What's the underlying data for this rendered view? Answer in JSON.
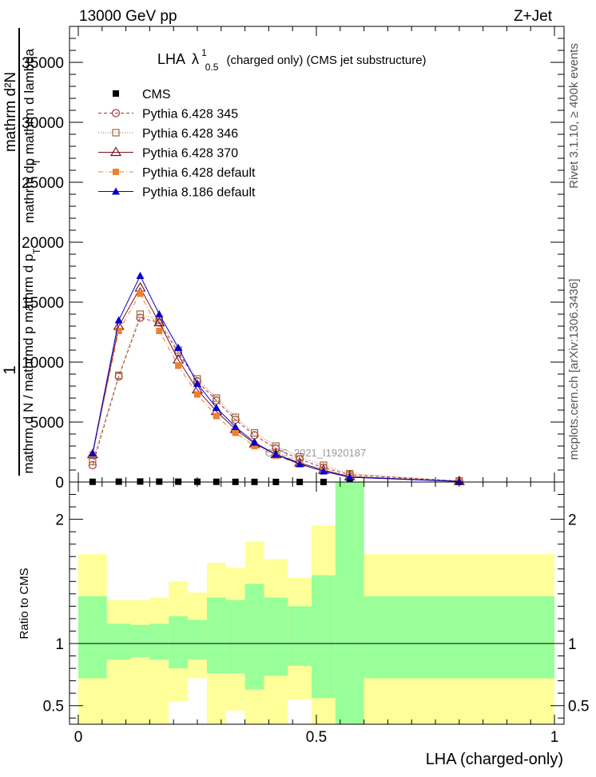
{
  "header": {
    "energy_label": "13000 GeV pp",
    "process_label": "Z+Jet",
    "title_lha": "LHA",
    "title_lambda": "λ",
    "title_sub": "0.5",
    "title_sup": "1",
    "title_rest": "(charged only) (CMS jet substructure)"
  },
  "side_labels": {
    "rivet": "Rivet 3.1.10, ≥ 400k events",
    "mcplots": "mcplots.cern.ch [arXiv:1306.3436]"
  },
  "watermark": "CMS_2021_I1920187",
  "ylabel_main": {
    "num": "mathrm d²N",
    "num_sub": "mathrm dp  mathrm d lambda",
    "num_sub_t": "T",
    "den": "mathrm d N / mathrmd p  mathrm d p",
    "den_sub": "T",
    "one": "1"
  },
  "colors": {
    "cms": "#000000",
    "p345": "#a0393b",
    "p346": "#a0693b",
    "p370": "#7a0f1c",
    "p6def": "#f08030",
    "p8def": "#0000d0",
    "band_inner": "#99ff99",
    "band_outer": "#ffff99"
  },
  "chart_data": [
    {
      "type": "line",
      "title": "LHA λ^1_0.5 (charged only) (CMS jet substructure)",
      "xlabel": "LHA (charged-only)",
      "ylabel": "1 / (mathrm d N / mathrm d p_T) · mathrm d²N / (mathrm d p_T mathrm d lambda)",
      "xlim": [
        0,
        1
      ],
      "ylim": [
        0,
        38000
      ],
      "yticks": [
        0,
        5000,
        10000,
        15000,
        20000,
        25000,
        30000,
        35000
      ],
      "ytick_labels": [
        "0",
        "5000",
        "10000",
        "15000",
        "20000",
        "25000",
        "30000",
        "35000"
      ],
      "x": [
        0.03,
        0.085,
        0.13,
        0.17,
        0.21,
        0.25,
        0.29,
        0.33,
        0.37,
        0.415,
        0.465,
        0.515,
        0.57,
        0.8
      ],
      "series": [
        {
          "name": "CMS",
          "marker": "filled-square",
          "values": [
            18,
            30,
            42,
            35,
            28,
            22,
            18,
            14,
            11,
            8,
            6,
            4,
            3,
            1
          ]
        },
        {
          "name": "Pythia 6.428 345",
          "marker": "open-circle",
          "style": "dashed",
          "values": [
            1400,
            8800,
            13700,
            13300,
            10800,
            8400,
            6800,
            5200,
            3900,
            2800,
            1900,
            1200,
            600,
            80
          ]
        },
        {
          "name": "Pythia 6.428 346",
          "marker": "open-square",
          "style": "dotted",
          "values": [
            1700,
            8900,
            14000,
            13500,
            11000,
            8600,
            7000,
            5400,
            4100,
            3000,
            2100,
            1400,
            700,
            90
          ]
        },
        {
          "name": "Pythia 6.428 370",
          "marker": "open-triangle",
          "style": "solid",
          "values": [
            2300,
            13000,
            16200,
            13300,
            10200,
            7700,
            5900,
            4400,
            3200,
            2300,
            1600,
            1000,
            450,
            60
          ]
        },
        {
          "name": "Pythia 6.428 default",
          "marker": "filled-square",
          "style": "dashdot",
          "values": [
            2300,
            12600,
            15700,
            12600,
            9700,
            7300,
            5500,
            4100,
            3000,
            2200,
            1500,
            900,
            400,
            50
          ]
        },
        {
          "name": "Pythia 8.186 default",
          "marker": "filled-triangle",
          "style": "solid",
          "values": [
            2400,
            13500,
            17200,
            14000,
            11200,
            8200,
            6200,
            4600,
            3300,
            2300,
            1500,
            900,
            400,
            50
          ]
        }
      ]
    },
    {
      "type": "area",
      "ylabel": "Ratio to CMS",
      "xlabel": "LHA (charged-only)",
      "xlim": [
        0,
        1
      ],
      "ylim": [
        0.35,
        2.3
      ],
      "xticks": [
        0,
        0.5,
        1
      ],
      "xtick_labels": [
        "0",
        "0.5",
        "1"
      ],
      "yticks": [
        0.5,
        1,
        2
      ],
      "ytick_labels": [
        "0.5",
        "1",
        "2"
      ],
      "reference_line": 1,
      "bins": [
        {
          "lo": 0.0,
          "hi": 0.06,
          "inner": [
            0.72,
            1.38
          ],
          "outer": [
            0.35,
            1.72
          ]
        },
        {
          "lo": 0.06,
          "hi": 0.11,
          "inner": [
            0.87,
            1.16
          ],
          "outer": [
            0.35,
            1.35
          ]
        },
        {
          "lo": 0.11,
          "hi": 0.15,
          "inner": [
            0.89,
            1.15
          ],
          "outer": [
            0.35,
            1.35
          ]
        },
        {
          "lo": 0.15,
          "hi": 0.19,
          "inner": [
            0.87,
            1.16
          ],
          "outer": [
            0.35,
            1.37
          ]
        },
        {
          "lo": 0.19,
          "hi": 0.23,
          "inner": [
            0.8,
            1.22
          ],
          "outer": [
            0.53,
            1.5
          ]
        },
        {
          "lo": 0.23,
          "hi": 0.27,
          "inner": [
            0.87,
            1.19
          ],
          "outer": [
            0.72,
            1.41
          ]
        },
        {
          "lo": 0.27,
          "hi": 0.31,
          "inner": [
            0.76,
            1.37
          ],
          "outer": [
            0.35,
            1.65
          ]
        },
        {
          "lo": 0.31,
          "hi": 0.35,
          "inner": [
            0.76,
            1.35
          ],
          "outer": [
            0.46,
            1.61
          ]
        },
        {
          "lo": 0.35,
          "hi": 0.39,
          "inner": [
            0.63,
            1.48
          ],
          "outer": [
            0.35,
            1.82
          ]
        },
        {
          "lo": 0.39,
          "hi": 0.44,
          "inner": [
            0.74,
            1.37
          ],
          "outer": [
            0.35,
            1.68
          ]
        },
        {
          "lo": 0.44,
          "hi": 0.49,
          "inner": [
            0.82,
            1.3
          ],
          "outer": [
            0.55,
            1.53
          ]
        },
        {
          "lo": 0.49,
          "hi": 0.54,
          "inner": [
            0.56,
            1.55
          ],
          "outer": [
            0.35,
            1.95
          ]
        },
        {
          "lo": 0.54,
          "hi": 0.6,
          "inner": [
            0.35,
            2.3
          ],
          "outer": [
            0.35,
            2.3
          ]
        },
        {
          "lo": 0.6,
          "hi": 1.0,
          "inner": [
            0.72,
            1.38
          ],
          "outer": [
            0.35,
            1.72
          ]
        }
      ]
    }
  ]
}
